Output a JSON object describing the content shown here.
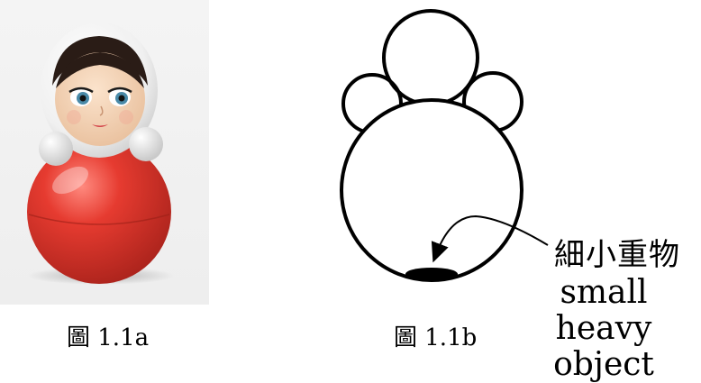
{
  "figure_a": {
    "caption": "圖 1.1a",
    "colors": {
      "body": "#e0392f",
      "hood": "#ffffff",
      "skin": "#f6d6b8",
      "hair": "#2a1c16",
      "background": "#eeeeee"
    }
  },
  "figure_b": {
    "caption": "圖 1.1b",
    "label_zh": "細小重物",
    "label_en": "small heavy object"
  }
}
